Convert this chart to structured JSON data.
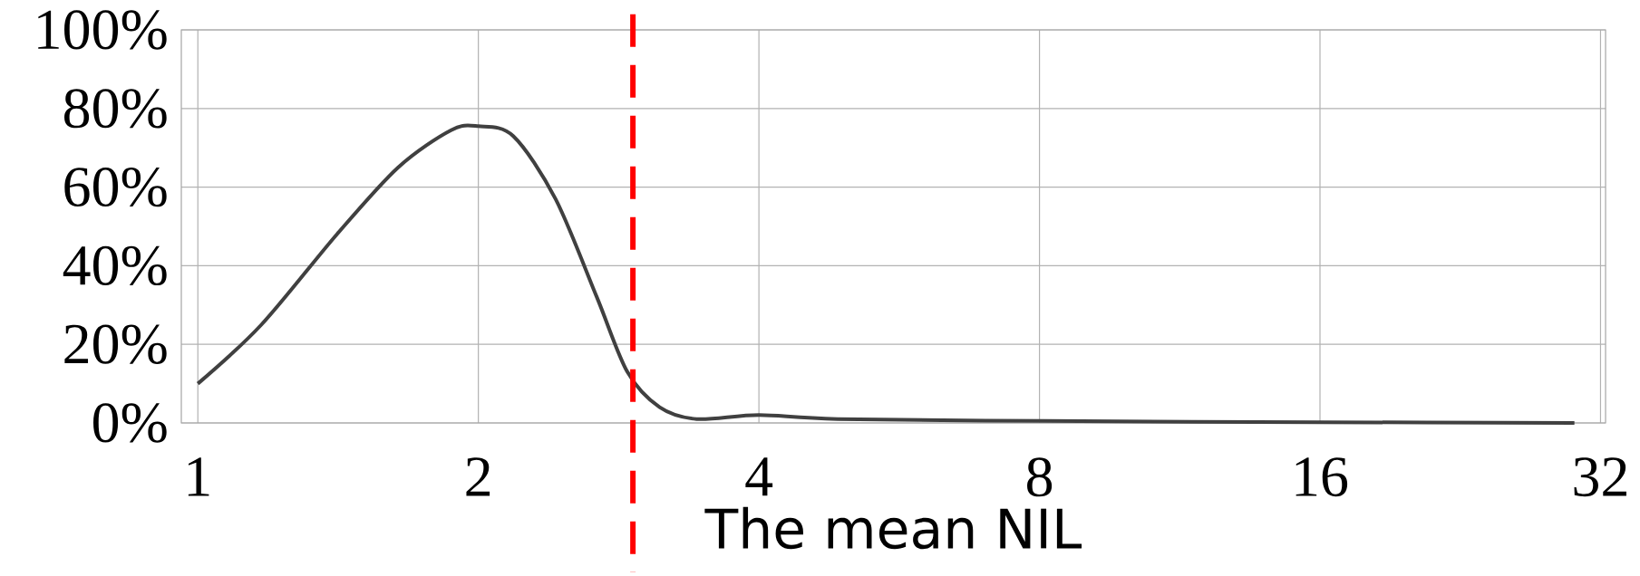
{
  "chart_data": {
    "type": "line",
    "xlabel": "The mean NIL",
    "log": "x",
    "x": [
      1,
      1.17,
      1.41,
      1.64,
      1.87,
      2,
      2.18,
      2.42,
      2.68,
      2.89,
      3.13,
      3.43,
      4,
      4.86,
      8.1,
      16,
      30
    ],
    "values": [
      10,
      25,
      48,
      65,
      74.5,
      75.5,
      73,
      57,
      32,
      13,
      4,
      1,
      2,
      1,
      0.5,
      0.2,
      0
    ],
    "color": "#404040",
    "xlim": [
      0.96,
      32.4
    ],
    "ylim": [
      0,
      100
    ],
    "xticks": [
      1,
      2,
      4,
      8,
      16,
      32
    ],
    "yticks": [
      {
        "value": 0,
        "label": "0%"
      },
      {
        "value": 20,
        "label": "20%"
      },
      {
        "value": 40,
        "label": "40%"
      },
      {
        "value": 60,
        "label": "60%"
      },
      {
        "value": 80,
        "label": "80%"
      },
      {
        "value": 100,
        "label": "100%"
      }
    ],
    "grid": true,
    "ref_lines": [
      {
        "axis": "x",
        "value": 2.93,
        "color": "#ff0000",
        "line_style": "dashed"
      }
    ]
  }
}
